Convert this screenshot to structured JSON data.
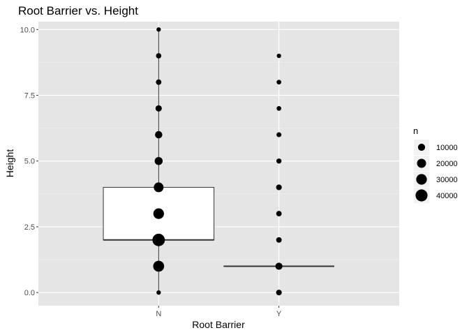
{
  "chart_data": {
    "type": "boxplot",
    "title": "Root Barrier vs. Height",
    "xlabel": "Root Barrier",
    "ylabel": "Height",
    "ylim": [
      -0.5,
      10.3
    ],
    "yticks": [
      0.0,
      2.5,
      5.0,
      7.5,
      10.0
    ],
    "ytick_labels": [
      "0.0",
      "2.5",
      "5.0",
      "7.5",
      "10.0"
    ],
    "categories": [
      "N",
      "Y"
    ],
    "grid": true,
    "background": "#e5e5e5",
    "legend": {
      "title": "n",
      "position": "right",
      "entries": [
        {
          "label": "10000",
          "n": 10000
        },
        {
          "label": "20000",
          "n": 20000
        },
        {
          "label": "30000",
          "n": 30000
        },
        {
          "label": "40000",
          "n": 40000
        }
      ]
    },
    "boxes": [
      {
        "category": "N",
        "whisker_low": 0,
        "q1": 2,
        "median": 2,
        "q3": 4,
        "whisker_high": 10
      },
      {
        "category": "Y",
        "whisker_low": 1,
        "q1": 1,
        "median": 1,
        "q3": 1,
        "whisker_high": 1
      }
    ],
    "points": [
      {
        "category": "N",
        "y": 0,
        "n": 2000
      },
      {
        "category": "N",
        "y": 1,
        "n": 32000
      },
      {
        "category": "N",
        "y": 2,
        "n": 44000
      },
      {
        "category": "N",
        "y": 3,
        "n": 30000
      },
      {
        "category": "N",
        "y": 4,
        "n": 24000
      },
      {
        "category": "N",
        "y": 5,
        "n": 14000
      },
      {
        "category": "N",
        "y": 6,
        "n": 11000
      },
      {
        "category": "N",
        "y": 7,
        "n": 7000
      },
      {
        "category": "N",
        "y": 8,
        "n": 4500
      },
      {
        "category": "N",
        "y": 9,
        "n": 4000
      },
      {
        "category": "N",
        "y": 10,
        "n": 2000
      },
      {
        "category": "Y",
        "y": 0,
        "n": 5000
      },
      {
        "category": "Y",
        "y": 1,
        "n": 10000
      },
      {
        "category": "Y",
        "y": 2,
        "n": 4500
      },
      {
        "category": "Y",
        "y": 3,
        "n": 4500
      },
      {
        "category": "Y",
        "y": 4,
        "n": 5000
      },
      {
        "category": "Y",
        "y": 5,
        "n": 3500
      },
      {
        "category": "Y",
        "y": 6,
        "n": 3000
      },
      {
        "category": "Y",
        "y": 7,
        "n": 2500
      },
      {
        "category": "Y",
        "y": 8,
        "n": 2500
      },
      {
        "category": "Y",
        "y": 9,
        "n": 2000
      }
    ]
  }
}
